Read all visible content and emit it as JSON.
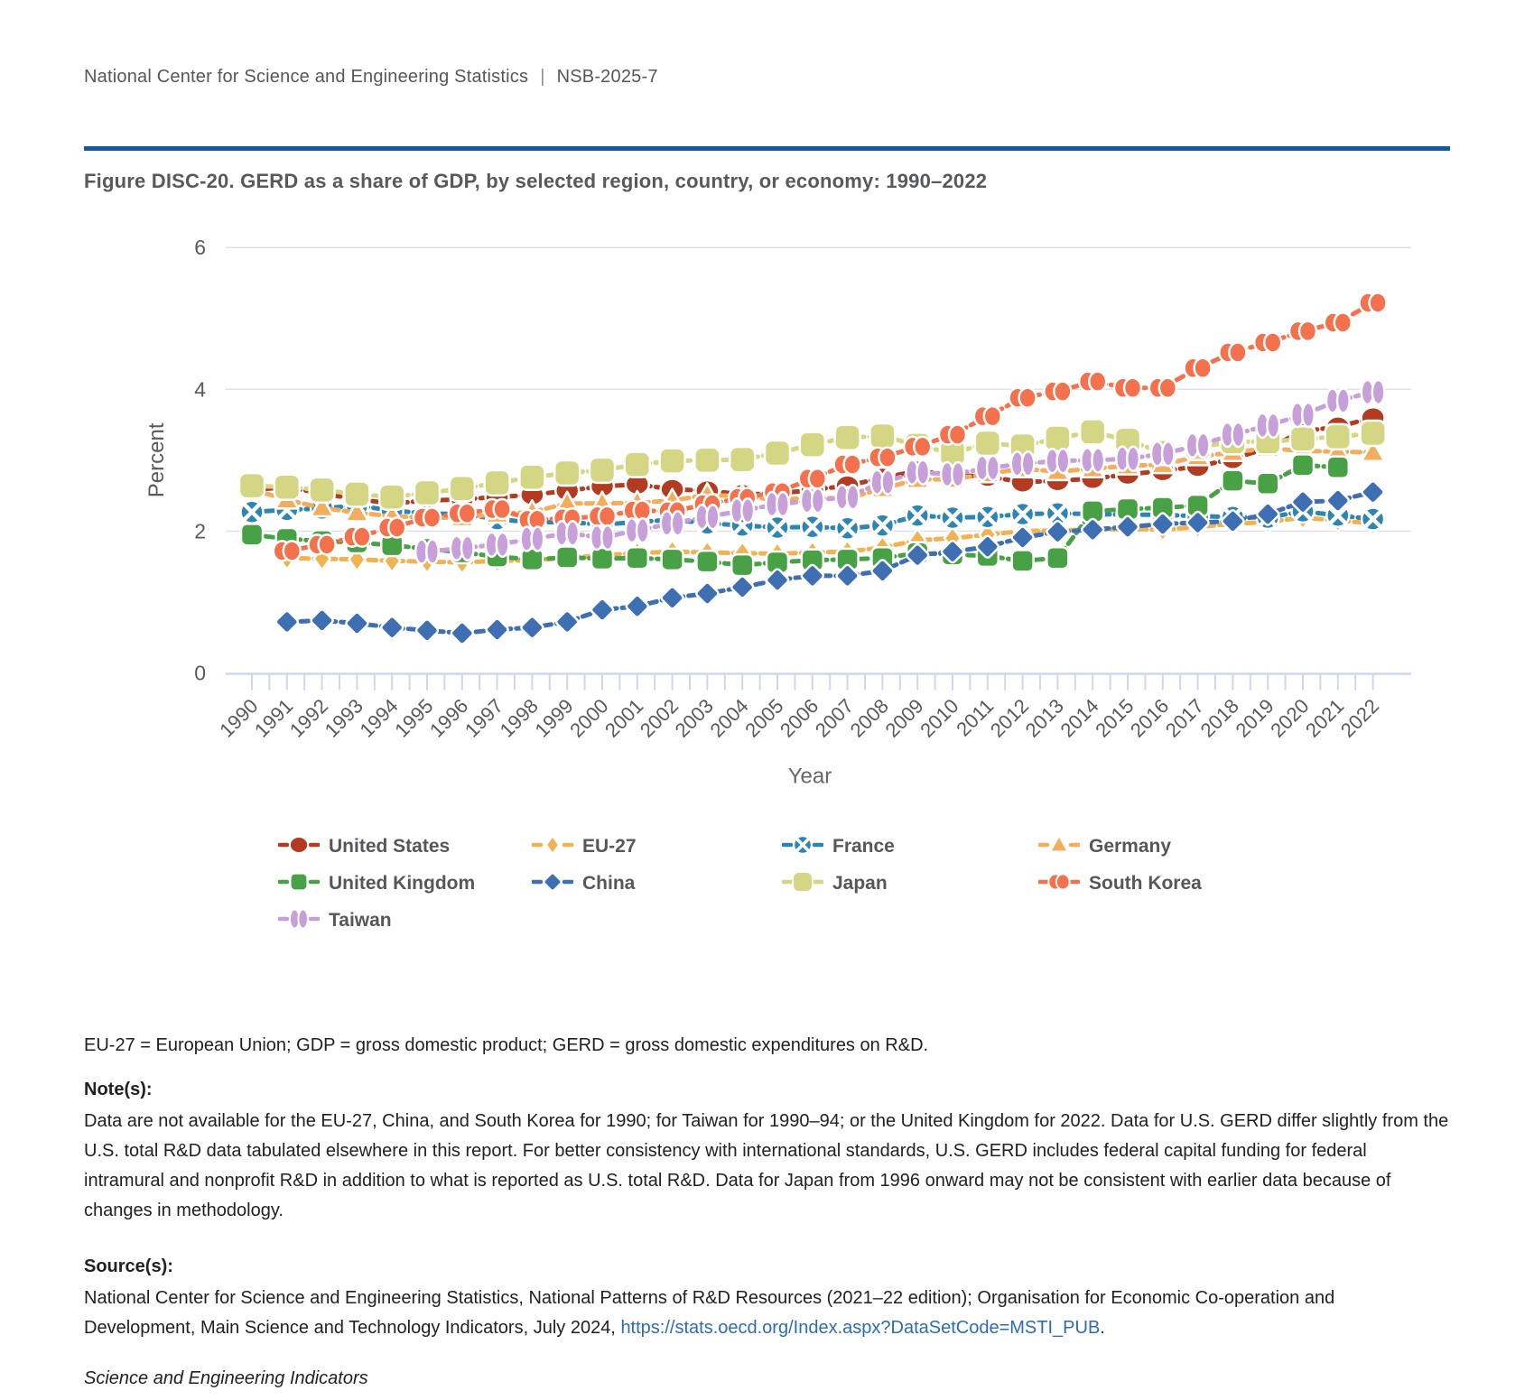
{
  "header": {
    "org": "National Center for Science and Engineering Statistics",
    "divider": "|",
    "report_id": "NSB-2025-7"
  },
  "figure_title": "Figure DISC-20. GERD as a share of GDP, by selected region, country, or economy: 1990–2022",
  "chart_data": {
    "type": "line",
    "title": "GERD as a share of GDP, by selected region, country, or economy: 1990–2022",
    "xlabel": "Year",
    "ylabel": "Percent",
    "ylim": [
      0,
      6
    ],
    "yticks": [
      0,
      2,
      4,
      6
    ],
    "grid": true,
    "legend_position": "bottom",
    "line_style": "dashed",
    "x": [
      1990,
      1991,
      1992,
      1993,
      1994,
      1995,
      1996,
      1997,
      1998,
      1999,
      2000,
      2001,
      2002,
      2003,
      2004,
      2005,
      2006,
      2007,
      2008,
      2009,
      2010,
      2011,
      2012,
      2013,
      2014,
      2015,
      2016,
      2017,
      2018,
      2019,
      2020,
      2021,
      2022
    ],
    "series": [
      {
        "name": "United States",
        "color": "#b23b22",
        "marker": "circle",
        "values": [
          2.58,
          2.62,
          2.53,
          2.45,
          2.39,
          2.43,
          2.45,
          2.48,
          2.51,
          2.57,
          2.63,
          2.66,
          2.59,
          2.57,
          2.52,
          2.53,
          2.58,
          2.64,
          2.75,
          2.85,
          2.79,
          2.77,
          2.69,
          2.71,
          2.74,
          2.8,
          2.85,
          2.91,
          3.02,
          3.17,
          3.41,
          3.47,
          3.6
        ]
      },
      {
        "name": "EU-27",
        "color": "#f0b351",
        "marker": "diamond-thin",
        "values": [
          null,
          1.62,
          1.61,
          1.6,
          1.58,
          1.57,
          1.56,
          1.58,
          1.59,
          1.62,
          1.66,
          1.69,
          1.71,
          1.7,
          1.69,
          1.68,
          1.7,
          1.71,
          1.77,
          1.87,
          1.9,
          1.95,
          2.0,
          2.01,
          2.02,
          2.03,
          2.02,
          2.06,
          2.1,
          2.13,
          2.19,
          2.15,
          2.11
        ]
      },
      {
        "name": "France",
        "color": "#2d86b2",
        "marker": "circle-x",
        "values": [
          2.27,
          2.3,
          2.32,
          2.36,
          2.29,
          2.25,
          2.24,
          2.17,
          2.12,
          2.13,
          2.09,
          2.13,
          2.16,
          2.11,
          2.08,
          2.05,
          2.06,
          2.04,
          2.08,
          2.22,
          2.19,
          2.2,
          2.24,
          2.25,
          2.24,
          2.23,
          2.23,
          2.21,
          2.2,
          2.19,
          2.28,
          2.22,
          2.17
        ]
      },
      {
        "name": "Germany",
        "color": "#f3ad5e",
        "marker": "triangle",
        "values": [
          2.59,
          2.44,
          2.33,
          2.26,
          2.21,
          2.19,
          2.19,
          2.24,
          2.27,
          2.39,
          2.39,
          2.4,
          2.43,
          2.51,
          2.49,
          2.44,
          2.47,
          2.46,
          2.6,
          2.73,
          2.73,
          2.81,
          2.88,
          2.84,
          2.88,
          2.92,
          2.94,
          3.05,
          3.11,
          3.17,
          3.13,
          3.12,
          3.11
        ]
      },
      {
        "name": "United Kingdom",
        "color": "#48a145",
        "marker": "square",
        "values": [
          1.95,
          1.89,
          1.86,
          1.84,
          1.8,
          1.75,
          1.7,
          1.64,
          1.6,
          1.63,
          1.61,
          1.62,
          1.6,
          1.57,
          1.52,
          1.56,
          1.59,
          1.6,
          1.62,
          1.69,
          1.67,
          1.65,
          1.58,
          1.62,
          2.28,
          2.31,
          2.33,
          2.36,
          2.71,
          2.67,
          2.93,
          2.9,
          null
        ]
      },
      {
        "name": "China",
        "color": "#3e6fb3",
        "marker": "diamond",
        "values": [
          null,
          0.72,
          0.74,
          0.7,
          0.64,
          0.6,
          0.56,
          0.61,
          0.64,
          0.72,
          0.89,
          0.94,
          1.06,
          1.12,
          1.21,
          1.31,
          1.37,
          1.37,
          1.44,
          1.66,
          1.71,
          1.78,
          1.91,
          1.99,
          2.02,
          2.06,
          2.1,
          2.12,
          2.14,
          2.24,
          2.41,
          2.43,
          2.55
        ]
      },
      {
        "name": "Japan",
        "color": "#d4d683",
        "marker": "square-large",
        "values": [
          2.64,
          2.62,
          2.58,
          2.52,
          2.48,
          2.54,
          2.6,
          2.68,
          2.76,
          2.82,
          2.86,
          2.94,
          2.99,
          3.0,
          3.01,
          3.1,
          3.22,
          3.32,
          3.34,
          3.21,
          3.1,
          3.24,
          3.2,
          3.31,
          3.4,
          3.28,
          3.11,
          3.18,
          3.26,
          3.26,
          3.3,
          3.33,
          3.38
        ]
      },
      {
        "name": "South Korea",
        "color": "#f3714d",
        "marker": "peanut-h",
        "values": [
          null,
          1.72,
          1.81,
          1.92,
          2.05,
          2.19,
          2.25,
          2.31,
          2.16,
          2.18,
          2.21,
          2.29,
          2.28,
          2.38,
          2.47,
          2.55,
          2.74,
          2.94,
          3.04,
          3.19,
          3.36,
          3.62,
          3.88,
          3.97,
          4.11,
          4.02,
          4.02,
          4.3,
          4.52,
          4.66,
          4.82,
          4.94,
          5.22
        ]
      },
      {
        "name": "Taiwan",
        "color": "#c7a0d9",
        "marker": "peanut-v",
        "values": [
          null,
          null,
          null,
          null,
          null,
          1.71,
          1.76,
          1.81,
          1.89,
          1.97,
          1.91,
          2.01,
          2.11,
          2.2,
          2.29,
          2.38,
          2.43,
          2.48,
          2.69,
          2.83,
          2.8,
          2.89,
          2.95,
          2.99,
          3.0,
          3.02,
          3.09,
          3.21,
          3.36,
          3.49,
          3.64,
          3.84,
          3.96
        ]
      }
    ]
  },
  "abbreviations": "EU-27 = European Union; GDP = gross domestic product; GERD = gross domestic expenditures on R&D.",
  "notes": {
    "label": "Note(s):",
    "text": "Data are not available for the EU-27, China, and South Korea for 1990; for Taiwan for 1990–94; or the United Kingdom for 2022. Data for U.S. GERD differ slightly from the U.S. total R&D data tabulated elsewhere in this report. For better consistency with international standards, U.S. GERD includes federal capital funding for federal intramural and nonprofit R&D in addition to what is reported as U.S. total R&D. Data for Japan from 1996 onward may not be consistent with earlier data because of changes in methodology."
  },
  "source": {
    "label": "Source(s):",
    "text_before_link": "National Center for Science and Engineering Statistics, National Patterns of R&D Resources (2021–22 edition); Organisation for Economic Co-operation and Development, Main Science and Technology Indicators, July 2024, ",
    "link": "https://stats.oecd.org/Index.aspx?DataSetCode=MSTI_PUB",
    "text_after_link": "."
  },
  "footer_italic": "Science and Engineering Indicators"
}
